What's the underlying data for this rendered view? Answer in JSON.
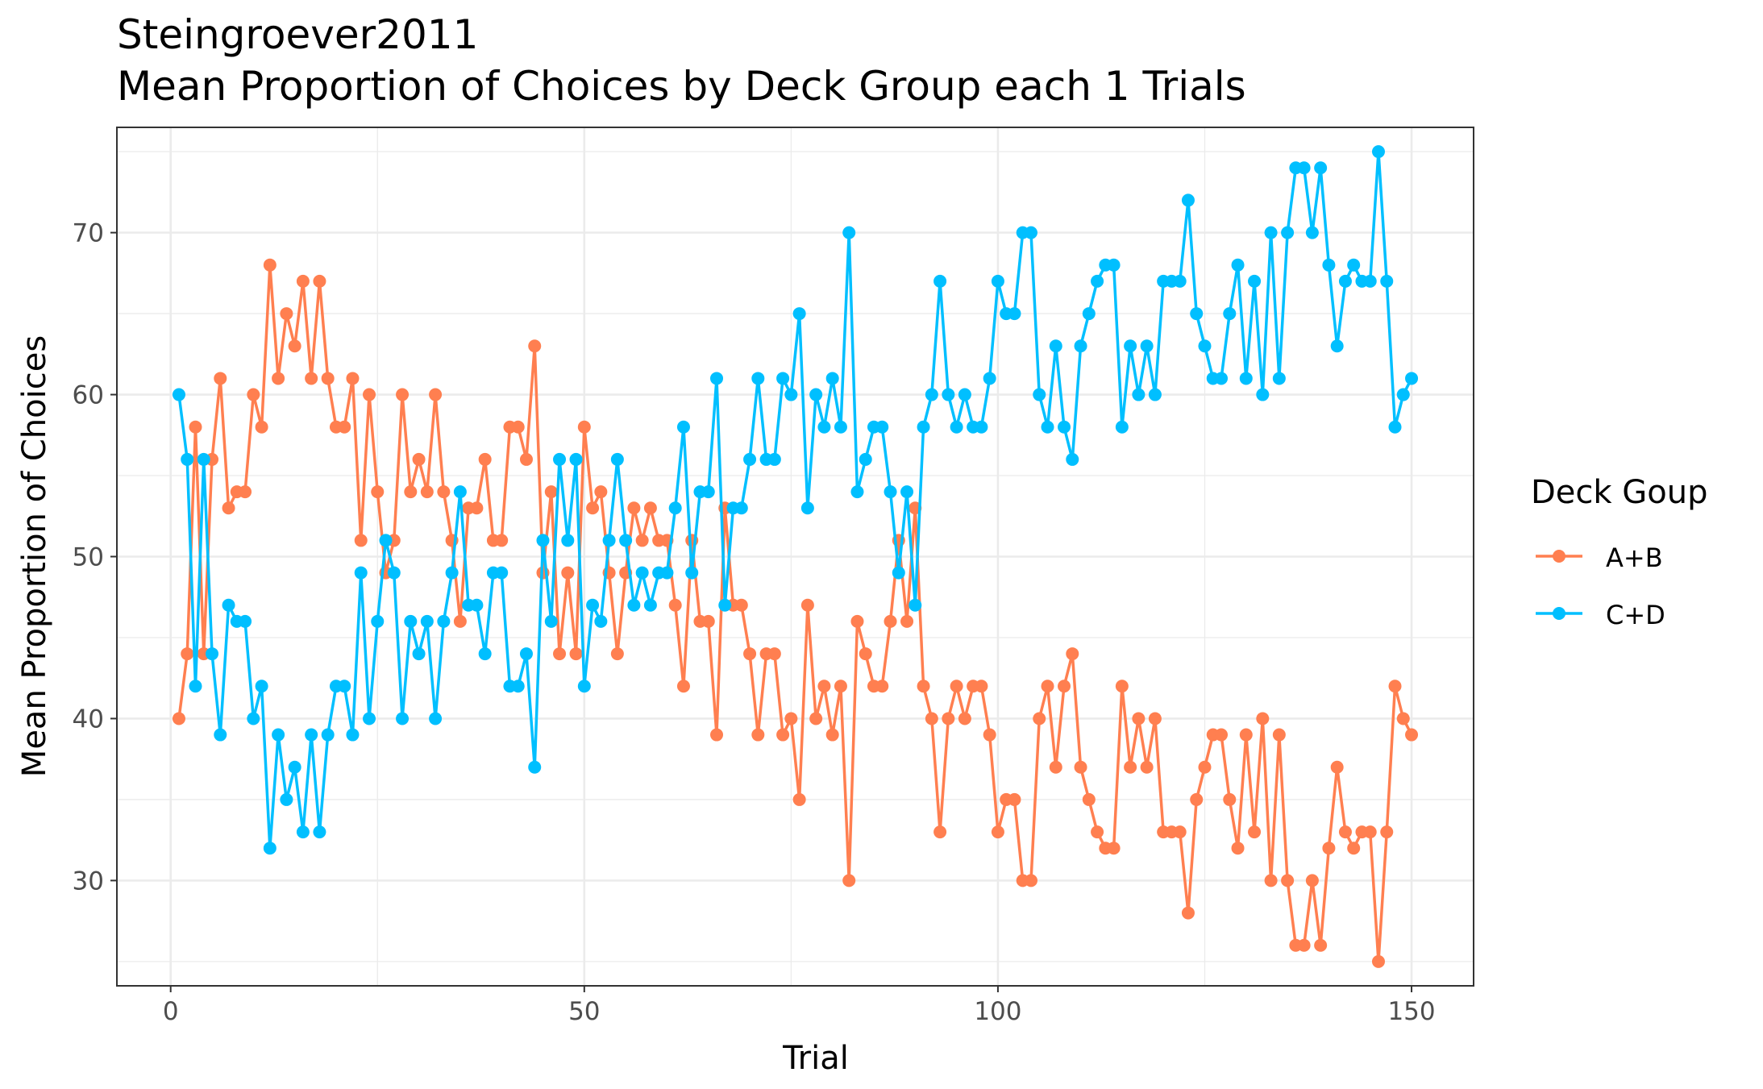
{
  "chart_data": {
    "type": "line",
    "title": "Steingroever2011",
    "subtitle": "Mean Proportion of Choices by Deck Group each 1 Trials",
    "xlabel": "Trial",
    "ylabel": "Mean Proportion of Choices",
    "xlim": [
      -6.5,
      157.5
    ],
    "ylim": [
      23.5,
      76.5
    ],
    "x_ticks": [
      0,
      50,
      100,
      150
    ],
    "y_ticks": [
      30,
      40,
      50,
      60,
      70
    ],
    "grid": true,
    "legend": {
      "title": "Deck Goup",
      "position": "right"
    },
    "x": [
      1,
      2,
      3,
      4,
      5,
      6,
      7,
      8,
      9,
      10,
      11,
      12,
      13,
      14,
      15,
      16,
      17,
      18,
      19,
      20,
      21,
      22,
      23,
      24,
      25,
      26,
      27,
      28,
      29,
      30,
      31,
      32,
      33,
      34,
      35,
      36,
      37,
      38,
      39,
      40,
      41,
      42,
      43,
      44,
      45,
      46,
      47,
      48,
      49,
      50,
      51,
      52,
      53,
      54,
      55,
      56,
      57,
      58,
      59,
      60,
      61,
      62,
      63,
      64,
      65,
      66,
      67,
      68,
      69,
      70,
      71,
      72,
      73,
      74,
      75,
      76,
      77,
      78,
      79,
      80,
      81,
      82,
      83,
      84,
      85,
      86,
      87,
      88,
      89,
      90,
      91,
      92,
      93,
      94,
      95,
      96,
      97,
      98,
      99,
      100,
      101,
      102,
      103,
      104,
      105,
      106,
      107,
      108,
      109,
      110,
      111,
      112,
      113,
      114,
      115,
      116,
      117,
      118,
      119,
      120,
      121,
      122,
      123,
      124,
      125,
      126,
      127,
      128,
      129,
      130,
      131,
      132,
      133,
      134,
      135,
      136,
      137,
      138,
      139,
      140,
      141,
      142,
      143,
      144,
      145,
      146,
      147,
      148,
      149,
      150
    ],
    "series": [
      {
        "name": "A+B",
        "color": "#ff7f50",
        "values": [
          40,
          44,
          58,
          44,
          56,
          61,
          53,
          54,
          54,
          60,
          58,
          68,
          61,
          65,
          63,
          67,
          61,
          67,
          61,
          58,
          58,
          61,
          51,
          60,
          54,
          49,
          51,
          60,
          54,
          56,
          54,
          60,
          54,
          51,
          46,
          53,
          53,
          56,
          51,
          51,
          58,
          58,
          56,
          63,
          49,
          54,
          44,
          49,
          44,
          58,
          53,
          54,
          49,
          44,
          49,
          53,
          51,
          53,
          51,
          51,
          47,
          42,
          51,
          46,
          46,
          39,
          53,
          47,
          47,
          44,
          39,
          44,
          44,
          39,
          40,
          35,
          47,
          40,
          42,
          39,
          42,
          30,
          46,
          44,
          42,
          42,
          46,
          51,
          46,
          53,
          42,
          40,
          33,
          40,
          42,
          40,
          42,
          42,
          39,
          33,
          35,
          35,
          30,
          30,
          40,
          42,
          37,
          42,
          44,
          37,
          35,
          33,
          32,
          32,
          42,
          37,
          40,
          37,
          40,
          33,
          33,
          33,
          28,
          35,
          37,
          39,
          39,
          35,
          32,
          39,
          33,
          40,
          30,
          39,
          30,
          26,
          26,
          30,
          26,
          32,
          37,
          33,
          32,
          33,
          33,
          25,
          33,
          42,
          40,
          39
        ]
      },
      {
        "name": "C+D",
        "color": "#00bfff",
        "values": [
          60,
          56,
          42,
          56,
          44,
          39,
          47,
          46,
          46,
          40,
          42,
          32,
          39,
          35,
          37,
          33,
          39,
          33,
          39,
          42,
          42,
          39,
          49,
          40,
          46,
          51,
          49,
          40,
          46,
          44,
          46,
          40,
          46,
          49,
          54,
          47,
          47,
          44,
          49,
          49,
          42,
          42,
          44,
          37,
          51,
          46,
          56,
          51,
          56,
          42,
          47,
          46,
          51,
          56,
          51,
          47,
          49,
          47,
          49,
          49,
          53,
          58,
          49,
          54,
          54,
          61,
          47,
          53,
          53,
          56,
          61,
          56,
          56,
          61,
          60,
          65,
          53,
          60,
          58,
          61,
          58,
          70,
          54,
          56,
          58,
          58,
          54,
          49,
          54,
          47,
          58,
          60,
          67,
          60,
          58,
          60,
          58,
          58,
          61,
          67,
          65,
          65,
          70,
          70,
          60,
          58,
          63,
          58,
          56,
          63,
          65,
          67,
          68,
          68,
          58,
          63,
          60,
          63,
          60,
          67,
          67,
          67,
          72,
          65,
          63,
          61,
          61,
          65,
          68,
          61,
          67,
          60,
          70,
          61,
          70,
          74,
          74,
          70,
          74,
          68,
          63,
          67,
          68,
          67,
          67,
          75,
          67,
          58,
          60,
          61
        ]
      }
    ]
  }
}
